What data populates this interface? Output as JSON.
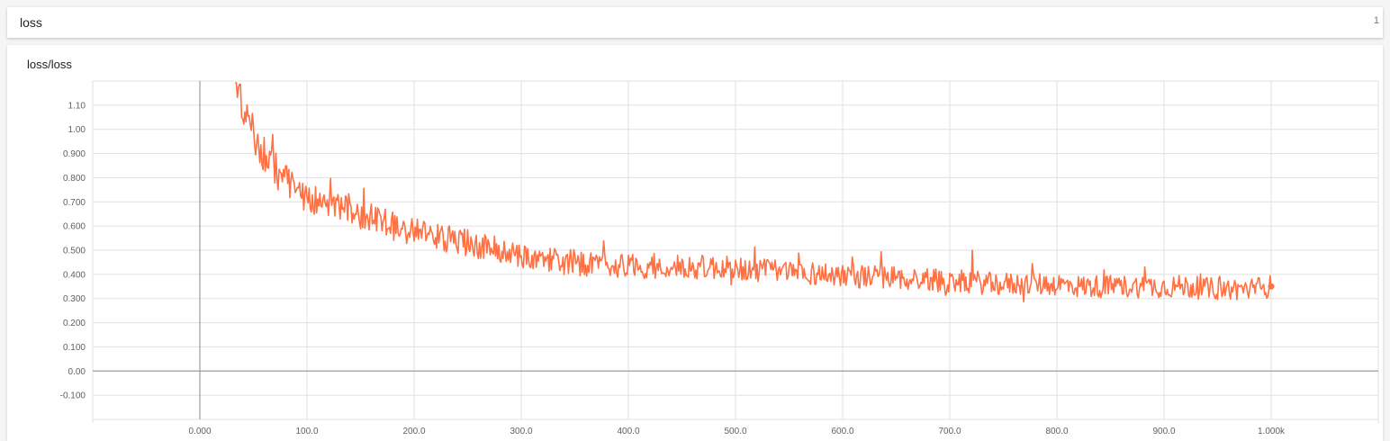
{
  "header": {
    "title": "loss",
    "count": "1"
  },
  "colors": {
    "series": "#ff7043",
    "grid": "#e0e0e0",
    "axis": "#9e9e9e"
  },
  "chart_data": {
    "type": "line",
    "title": "loss/loss",
    "xlabel": "",
    "ylabel": "",
    "xlim": [
      -100,
      1100
    ],
    "ylim": [
      -0.2,
      1.2
    ],
    "grid": true,
    "x_ticks": [
      0,
      100,
      200,
      300,
      400,
      500,
      600,
      700,
      800,
      900,
      1000
    ],
    "x_tick_labels": [
      "0.000",
      "100.0",
      "200.0",
      "300.0",
      "400.0",
      "500.0",
      "600.0",
      "700.0",
      "800.0",
      "900.0",
      "1.000k"
    ],
    "y_ticks": [
      -0.1,
      0.0,
      0.1,
      0.2,
      0.3,
      0.4,
      0.5,
      0.6,
      0.7,
      0.8,
      0.9,
      1.0,
      1.1
    ],
    "y_tick_labels": [
      "-0.100",
      "0.00",
      "0.100",
      "0.200",
      "0.300",
      "0.400",
      "0.500",
      "0.600",
      "0.700",
      "0.800",
      "0.900",
      "1.00",
      "1.10"
    ],
    "series": [
      {
        "x": [
          33,
          36,
          40,
          43,
          47,
          50,
          55,
          60,
          65,
          70,
          75,
          80,
          85,
          90,
          95,
          100,
          110,
          120,
          130,
          140,
          150,
          160,
          170,
          180,
          190,
          200,
          210,
          220,
          230,
          240,
          250,
          260,
          270,
          280,
          290,
          300,
          310,
          320,
          330,
          340,
          350,
          360,
          380,
          400,
          420,
          440,
          460,
          480,
          500,
          520,
          540,
          560,
          580,
          600,
          620,
          640,
          660,
          680,
          700,
          720,
          740,
          760,
          780,
          800,
          820,
          840,
          860,
          880,
          900,
          920,
          940,
          960,
          980,
          1000
        ],
        "y": [
          1.19,
          1.13,
          1.09,
          1.05,
          1.0,
          0.98,
          0.94,
          0.9,
          0.86,
          0.84,
          0.8,
          0.79,
          0.77,
          0.76,
          0.74,
          0.72,
          0.7,
          0.69,
          0.68,
          0.67,
          0.65,
          0.63,
          0.62,
          0.6,
          0.59,
          0.58,
          0.57,
          0.56,
          0.55,
          0.54,
          0.53,
          0.52,
          0.51,
          0.5,
          0.49,
          0.48,
          0.47,
          0.46,
          0.46,
          0.45,
          0.45,
          0.44,
          0.44,
          0.44,
          0.43,
          0.43,
          0.43,
          0.43,
          0.42,
          0.42,
          0.41,
          0.41,
          0.4,
          0.4,
          0.39,
          0.39,
          0.38,
          0.38,
          0.37,
          0.37,
          0.36,
          0.36,
          0.36,
          0.36,
          0.35,
          0.35,
          0.35,
          0.35,
          0.35,
          0.35,
          0.34,
          0.34,
          0.34,
          0.35
        ]
      }
    ]
  }
}
